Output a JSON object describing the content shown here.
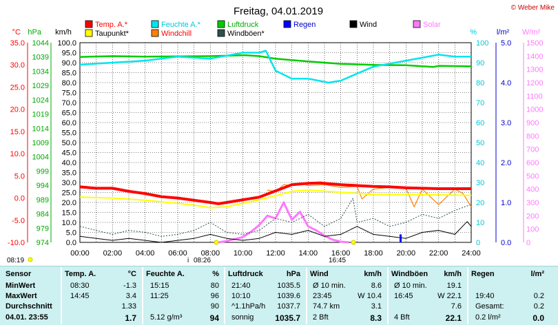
{
  "title": "Freitag, 04.01.2019",
  "credit": "© Weber Mike",
  "legend": [
    {
      "label": "Temp. A.*",
      "color": "#ff0000"
    },
    {
      "label": "Taupunkt*",
      "color": "#ffff00"
    },
    {
      "label": "Feuchte A.*",
      "color": "#00e5ee"
    },
    {
      "label": "Windchill",
      "color": "#ff8000"
    },
    {
      "label": "Luftdruck",
      "color": "#00cc00"
    },
    {
      "label": "Windböen*",
      "color": "#2f4f4f"
    },
    {
      "label": "Regen",
      "color": "#0000ff"
    },
    {
      "label": "Wind",
      "color": "#000000"
    },
    {
      "label": "Solar",
      "color": "#ff77ff"
    }
  ],
  "axis_units": {
    "temp": "°C",
    "pressure": "hPa",
    "wind": "km/h",
    "humidity": "%",
    "rain": "l/m²",
    "solar": "W/m²"
  },
  "x_ticks": [
    "00:00",
    "02:00",
    "04:00",
    "06:00",
    "08:00",
    "10:00",
    "12:00",
    "14:00",
    "16:00",
    "18:00",
    "20:00",
    "22:00",
    "24:00"
  ],
  "temp_ticks": [
    "35.0",
    "30.0",
    "25.0",
    "20.0",
    "15.0",
    "10.0",
    "5.0",
    "0.0",
    "-5.0",
    "-10.0"
  ],
  "pressure_ticks": [
    "1044",
    "1039",
    "1034",
    "1029",
    "1024",
    "1019",
    "1014",
    "1009",
    "1004",
    "999",
    "994",
    "989",
    "984",
    "979",
    "974"
  ],
  "wind_ticks": [
    "100.0",
    "95.0",
    "90.0",
    "85.0",
    "80.0",
    "75.0",
    "70.0",
    "65.0",
    "60.0",
    "55.0",
    "50.0",
    "45.0",
    "40.0",
    "35.0",
    "30.0",
    "25.0",
    "20.0",
    "15.0",
    "10.0",
    "5.0",
    "0.0"
  ],
  "humidity_ticks": [
    "100",
    "90",
    "80",
    "70",
    "60",
    "50",
    "40",
    "30",
    "20",
    "10",
    "0"
  ],
  "rain_ticks": [
    "5.0",
    "4.0",
    "3.0",
    "2.0",
    "1.0",
    "0.0"
  ],
  "solar_ticks": [
    "1500",
    "1400",
    "1300",
    "1200",
    "1100",
    "1000",
    "900",
    "800",
    "700",
    "600",
    "500",
    "400",
    "300",
    "200",
    "100",
    "0"
  ],
  "markers": {
    "sunrise": "08:19",
    "noon": "08:26",
    "sunset": "16:45"
  },
  "table": {
    "headers": [
      "Sensor",
      "Temp. A.",
      "°C",
      "Feuchte A.",
      "%",
      "Luftdruck",
      "hPa",
      "Wind",
      "km/h",
      "Windböen",
      "km/h",
      "Regen",
      "l/m²"
    ],
    "rows": [
      {
        "label": "MinWert",
        "temp_time": "08:30",
        "temp": "-1.3",
        "hum_time": "15:15",
        "hum": "80",
        "press_time": "21:40",
        "press": "1035.5",
        "wind_a": "Ø 10 min.",
        "wind_b": "8.6",
        "gust_a": "Ø 10 min.",
        "gust_b": "19.1",
        "rain_a": "",
        "rain_b": ""
      },
      {
        "label": "MaxWert",
        "temp_time": "14:45",
        "temp": "3.4",
        "hum_time": "11:25",
        "hum": "96",
        "press_time": "10:10",
        "press": "1039.6",
        "wind_a": "23:45",
        "wind_b": "W 10.4",
        "gust_a": "16:45",
        "gust_b": "W 22.1",
        "rain_a": "19:40",
        "rain_b": "0.2"
      },
      {
        "label": "Durchschnitt",
        "temp_time": "",
        "temp": "1.33",
        "hum_time": "",
        "hum": "90",
        "press_time": "^1.1hPa/h",
        "press": "1037.7",
        "wind_a": "74.7 km",
        "wind_b": "3.1",
        "gust_a": "",
        "gust_b": "7.6",
        "rain_a": "Gesamt:",
        "rain_b": "0.2"
      },
      {
        "label": "04.01. 23:55",
        "temp_time": "",
        "temp": "1.7",
        "hum_time": "5.12 g/m³",
        "hum": "94",
        "press_time": "sonnig",
        "press": "1035.7",
        "wind_a": "2 Bft",
        "wind_b": "8.3",
        "gust_a": "4 Bft",
        "gust_b": "22.1",
        "rain_a": "0.2 l/m²",
        "rain_b": "0.0"
      }
    ]
  },
  "chart_data": {
    "type": "line",
    "title": "Freitag, 04.01.2019",
    "x_unit": "hour of day",
    "xlim": [
      0,
      24
    ],
    "series": [
      {
        "name": "Temp. A.*",
        "unit": "°C",
        "color": "#ff0000",
        "x": [
          0,
          1,
          2,
          3,
          4,
          5,
          6,
          7,
          8,
          8.5,
          9,
          10,
          11,
          12,
          13,
          14,
          14.75,
          15,
          16,
          17,
          18,
          19,
          20,
          21,
          22,
          23,
          24
        ],
        "y": [
          2.5,
          2.2,
          2.2,
          1.5,
          1.0,
          0.3,
          0.0,
          -0.5,
          -1.0,
          -1.3,
          -1.0,
          -0.4,
          0.2,
          1.6,
          3.0,
          3.3,
          3.4,
          3.3,
          3.0,
          2.8,
          2.6,
          2.5,
          2.3,
          2.2,
          2.1,
          2.1,
          2.1
        ]
      },
      {
        "name": "Taupunkt*",
        "unit": "°C",
        "color": "#ffff00",
        "x": [
          0,
          2,
          4,
          6,
          7,
          8,
          9,
          10,
          11,
          12,
          13,
          14,
          16,
          18,
          20,
          22,
          24
        ],
        "y": [
          0.2,
          0.0,
          -0.5,
          -1.2,
          -1.6,
          -2.2,
          -2.0,
          -1.2,
          -0.4,
          0.5,
          1.5,
          1.8,
          1.3,
          0.8,
          0.8,
          0.7,
          0.6
        ]
      },
      {
        "name": "Windchill",
        "unit": "°C",
        "color": "#ff8000",
        "x": [
          11.5,
          12,
          12.5,
          13,
          13.5,
          14,
          15,
          16,
          17,
          17.3,
          18,
          19,
          20,
          20.5,
          21,
          22,
          23,
          23.5,
          24
        ],
        "y": [
          1.8,
          1.4,
          3.0,
          2.8,
          3.4,
          2.8,
          3.0,
          2.4,
          2.6,
          -0.2,
          2.0,
          2.4,
          2.2,
          -2.0,
          2.0,
          -1.5,
          2.0,
          1.0,
          -2.0
        ]
      },
      {
        "name": "Feuchte A.*",
        "unit": "%",
        "color": "#00e5ee",
        "x": [
          0,
          2,
          4,
          6,
          8,
          10,
          11,
          11.4,
          12,
          13,
          14,
          15.25,
          16,
          18,
          20,
          22,
          23,
          24
        ],
        "y": [
          89,
          90,
          91,
          93,
          92,
          95,
          95,
          96,
          86,
          82,
          82,
          80,
          81,
          88,
          91,
          94,
          93,
          93
        ]
      },
      {
        "name": "Luftdruck",
        "unit": "hPa",
        "color": "#00cc00",
        "x": [
          0,
          2,
          4,
          6,
          8,
          10,
          10.2,
          11,
          12,
          13,
          14,
          16,
          18,
          20,
          21.7,
          22,
          24
        ],
        "y": [
          1039.0,
          1039.3,
          1039.1,
          1039.2,
          1039.3,
          1039.6,
          1039.6,
          1039.3,
          1038.4,
          1037.9,
          1037.4,
          1036.6,
          1036.2,
          1036.1,
          1035.5,
          1035.9,
          1035.7
        ]
      },
      {
        "name": "Windböen*",
        "unit": "km/h",
        "color": "#2f4f4f",
        "x": [
          0,
          1,
          2,
          3,
          4,
          5,
          6,
          7,
          8,
          9,
          10,
          11,
          12,
          13,
          14,
          15,
          16,
          16.75,
          17,
          18,
          19,
          20,
          21,
          22,
          23,
          24
        ],
        "y": [
          8,
          6,
          4,
          6,
          5,
          3,
          4,
          6,
          10,
          5,
          4,
          6,
          12,
          10,
          14,
          8,
          12,
          22.1,
          10,
          12,
          8,
          10,
          14,
          12,
          16,
          19
        ]
      },
      {
        "name": "Wind",
        "unit": "km/h",
        "color": "#000000",
        "x": [
          0,
          1,
          2,
          3,
          4,
          5,
          6,
          7,
          8,
          9,
          10,
          11,
          12,
          13,
          14,
          15,
          16,
          17,
          18,
          19,
          20,
          21,
          22,
          23,
          23.75,
          24
        ],
        "y": [
          3,
          2,
          1,
          2,
          1,
          0,
          1,
          2,
          4,
          2,
          1,
          2,
          5,
          4,
          6,
          3,
          4,
          8,
          4,
          3,
          2,
          5,
          6,
          4,
          10.4,
          8
        ]
      },
      {
        "name": "Regen",
        "unit": "l/m²",
        "color": "#0000ff",
        "x": [
          19.67
        ],
        "y": [
          0.2
        ]
      },
      {
        "name": "Solar",
        "unit": "W/m²",
        "color": "#ff77ff",
        "x": [
          8.5,
          9,
          10,
          10.5,
          11,
          11.5,
          12,
          12.5,
          13,
          13.5,
          14,
          14.5,
          15,
          15.5,
          16,
          16.5
        ],
        "y": [
          0,
          10,
          40,
          80,
          130,
          200,
          180,
          300,
          170,
          230,
          120,
          90,
          50,
          20,
          5,
          0
        ]
      }
    ],
    "y_axes": {
      "temp": {
        "label": "°C",
        "ylim": [
          -10,
          35
        ]
      },
      "pressure": {
        "label": "hPa",
        "ylim": [
          974,
          1044
        ]
      },
      "wind": {
        "label": "km/h",
        "ylim": [
          0,
          100
        ]
      },
      "humidity": {
        "label": "%",
        "ylim": [
          0,
          100
        ]
      },
      "rain": {
        "label": "l/m²",
        "ylim": [
          0,
          5
        ]
      },
      "solar": {
        "label": "W/m²",
        "ylim": [
          0,
          1500
        ]
      }
    },
    "grid": true
  }
}
